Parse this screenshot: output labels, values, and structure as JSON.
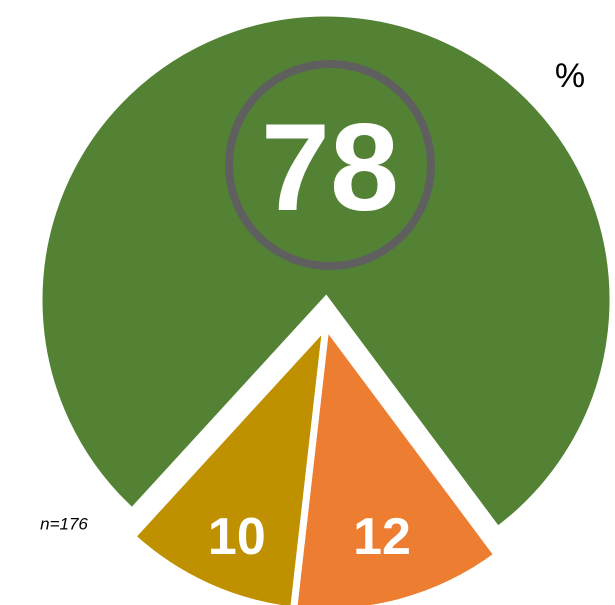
{
  "chart_data": {
    "type": "pie",
    "values": [
      78,
      12,
      10
    ],
    "colors": [
      "#548235",
      "#ed7d31",
      "#bf9000"
    ],
    "annotations": [
      "%",
      "n=176"
    ]
  }
}
